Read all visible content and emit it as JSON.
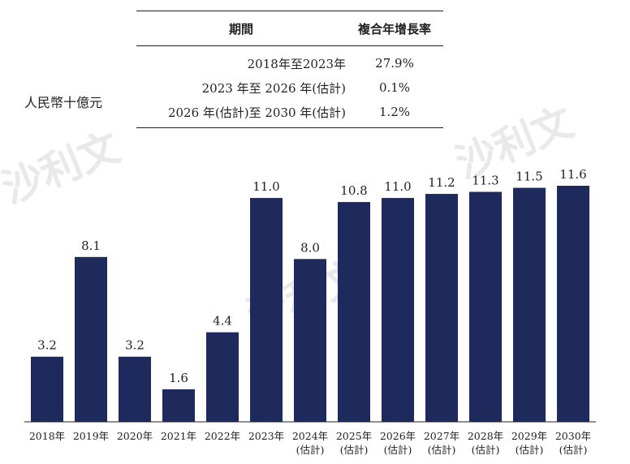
{
  "unit_label": "人民幣十億元",
  "cagr_table": {
    "header": {
      "period": "期間",
      "rate": "複合年增長率"
    },
    "rows": [
      {
        "period": "2018年至2023年",
        "rate": "27.9%"
      },
      {
        "period": "2023 年至 2026 年(估計)",
        "rate": "0.1%"
      },
      {
        "period": "2026 年(估計)至 2030 年(估計)",
        "rate": "1.2%"
      }
    ]
  },
  "colors": {
    "bar": "#1f2a5c",
    "text": "#231f20",
    "watermark": "#e9e9e9"
  },
  "chart_data": {
    "type": "bar",
    "ylabel": "人民幣十億元",
    "categories": [
      [
        "2018年"
      ],
      [
        "2019年"
      ],
      [
        "2020年"
      ],
      [
        "2021年"
      ],
      [
        "2022年"
      ],
      [
        "2023年"
      ],
      [
        "2024年",
        "(估計)"
      ],
      [
        "2025年",
        "(估計)"
      ],
      [
        "2026年",
        "(估計)"
      ],
      [
        "2027年",
        "(估計)"
      ],
      [
        "2028年",
        "(估計)"
      ],
      [
        "2029年",
        "(估計)"
      ],
      [
        "2030年",
        "(估計)"
      ]
    ],
    "values": [
      3.2,
      8.1,
      3.2,
      1.6,
      4.4,
      11.0,
      8.0,
      10.8,
      11.0,
      11.2,
      11.3,
      11.5,
      11.6
    ],
    "value_labels": [
      "3.2",
      "8.1",
      "3.2",
      "1.6",
      "4.4",
      "11.0",
      "8.0",
      "10.8",
      "11.0",
      "11.2",
      "11.3",
      "11.5",
      "11.6"
    ],
    "ylim": [
      0,
      11.6
    ],
    "grid": false,
    "legend": "none"
  }
}
